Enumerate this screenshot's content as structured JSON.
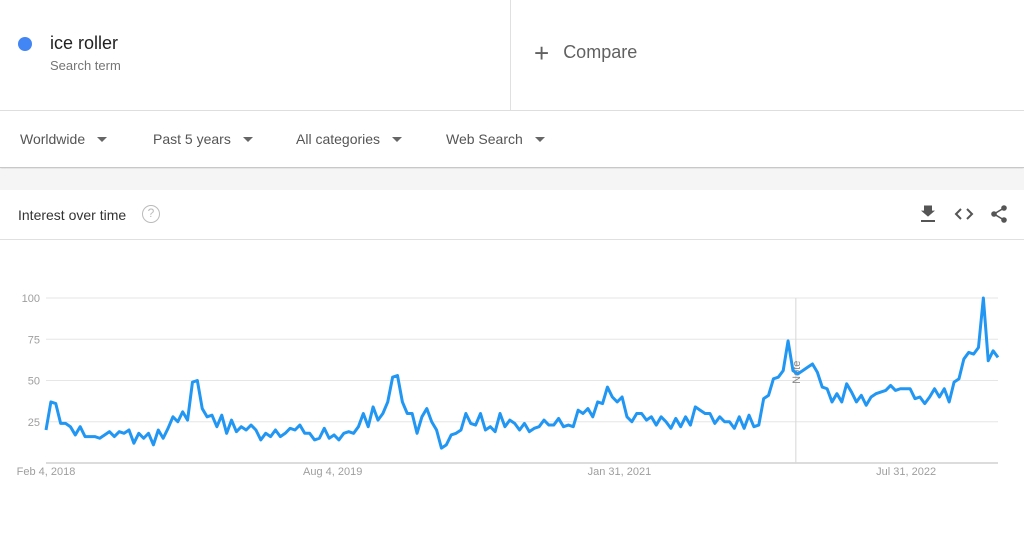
{
  "search_term": {
    "label": "ice roller",
    "sublabel": "Search term",
    "color": "#4285f4"
  },
  "compare": {
    "label": "Compare",
    "icon": "plus-icon"
  },
  "filters": [
    {
      "label": "Worldwide"
    },
    {
      "label": "Past 5 years"
    },
    {
      "label": "All categories"
    },
    {
      "label": "Web Search"
    }
  ],
  "card": {
    "title": "Interest over time",
    "help_icon": "question-circle-icon",
    "actions": [
      "download-icon",
      "embed-code-icon",
      "share-icon"
    ]
  },
  "chart_data": {
    "type": "line",
    "title": "",
    "xlabel": "",
    "ylabel": "",
    "ylim": [
      0,
      100
    ],
    "x_range": [
      "2018-02-04",
      "2023-01-22"
    ],
    "y_ticks": [
      25,
      50,
      75,
      100
    ],
    "x_ticks": [
      {
        "date": "2018-02-04",
        "label": "Feb 4, 2018"
      },
      {
        "date": "2019-08-04",
        "label": "Aug 4, 2019"
      },
      {
        "date": "2021-01-31",
        "label": "Jan 31, 2021"
      },
      {
        "date": "2022-07-31",
        "label": "Jul 31, 2022"
      }
    ],
    "grid": true,
    "annotation": {
      "date": "2022-01-02",
      "label": "Note"
    },
    "series": [
      {
        "color": "#2196f3",
        "values": [
          20,
          37,
          36,
          24,
          24,
          22,
          17,
          22,
          16,
          16,
          16,
          15,
          17,
          19,
          16,
          19,
          18,
          20,
          12,
          18,
          15,
          18,
          11,
          20,
          15,
          21,
          28,
          25,
          31,
          26,
          49,
          50,
          33,
          28,
          29,
          22,
          29,
          18,
          26,
          19,
          22,
          20,
          23,
          20,
          14,
          18,
          16,
          20,
          16,
          18,
          21,
          20,
          23,
          18,
          18,
          14,
          15,
          21,
          15,
          17,
          14,
          18,
          19,
          18,
          22,
          30,
          22,
          34,
          26,
          30,
          37,
          52,
          53,
          37,
          30,
          30,
          18,
          28,
          33,
          25,
          20,
          9,
          11,
          17,
          18,
          20,
          30,
          24,
          23,
          30,
          20,
          22,
          19,
          30,
          22,
          26,
          24,
          20,
          24,
          19,
          21,
          22,
          26,
          23,
          23,
          27,
          22,
          23,
          22,
          32,
          30,
          33,
          28,
          37,
          36,
          46,
          40,
          37,
          40,
          28,
          25,
          30,
          30,
          26,
          28,
          23,
          28,
          25,
          21,
          27,
          22,
          28,
          23,
          34,
          32,
          30,
          30,
          24,
          28,
          25,
          25,
          21,
          28,
          21,
          29,
          22,
          23,
          39,
          41,
          51,
          52,
          56,
          74,
          56,
          54,
          56,
          58,
          60,
          55,
          46,
          45,
          37,
          42,
          37,
          48,
          43,
          37,
          41,
          35,
          40,
          42,
          43,
          44,
          47,
          44,
          45,
          45,
          45,
          39,
          40,
          36,
          40,
          45,
          40,
          45,
          37,
          49,
          51,
          63,
          67,
          66,
          70,
          100,
          62,
          68,
          64
        ]
      }
    ]
  }
}
